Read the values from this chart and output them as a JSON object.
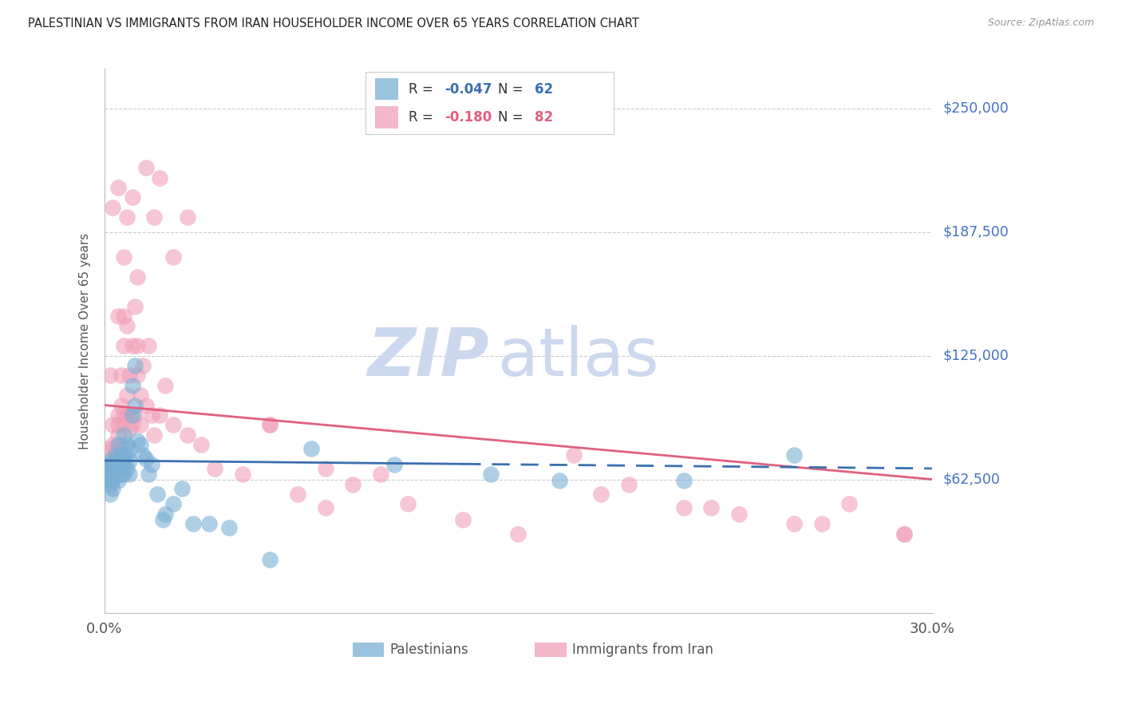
{
  "title": "PALESTINIAN VS IMMIGRANTS FROM IRAN HOUSEHOLDER INCOME OVER 65 YEARS CORRELATION CHART",
  "source": "Source: ZipAtlas.com",
  "ylabel": "Householder Income Over 65 years",
  "ytick_labels": [
    "$62,500",
    "$125,000",
    "$187,500",
    "$250,000"
  ],
  "ytick_values": [
    62500,
    125000,
    187500,
    250000
  ],
  "ylim": [
    -5000,
    270000
  ],
  "xlim": [
    0.0,
    0.3
  ],
  "blue_R": "-0.047",
  "blue_N": "62",
  "pink_R": "-0.180",
  "pink_N": "82",
  "blue_color": "#7bafd4",
  "pink_color": "#f0a0b8",
  "blue_line_color": "#3a6faf",
  "pink_line_color": "#e06080",
  "watermark_color": "#ccd8ee",
  "background_color": "#ffffff",
  "grid_color": "#cccccc",
  "title_color": "#222222",
  "source_color": "#999999",
  "ytick_color": "#4472c4",
  "legend_label_blue": "Palestinians",
  "legend_label_pink": "Immigrants from Iran",
  "blue_scatter_x": [
    0.001,
    0.001,
    0.001,
    0.001,
    0.002,
    0.002,
    0.002,
    0.002,
    0.002,
    0.003,
    0.003,
    0.003,
    0.003,
    0.003,
    0.004,
    0.004,
    0.004,
    0.004,
    0.004,
    0.005,
    0.005,
    0.005,
    0.005,
    0.006,
    0.006,
    0.006,
    0.006,
    0.007,
    0.007,
    0.007,
    0.007,
    0.008,
    0.008,
    0.008,
    0.009,
    0.009,
    0.009,
    0.01,
    0.01,
    0.011,
    0.011,
    0.012,
    0.013,
    0.014,
    0.015,
    0.016,
    0.017,
    0.019,
    0.021,
    0.022,
    0.025,
    0.028,
    0.032,
    0.038,
    0.045,
    0.06,
    0.075,
    0.105,
    0.14,
    0.165,
    0.21,
    0.25
  ],
  "blue_scatter_y": [
    62000,
    65000,
    68000,
    70000,
    60000,
    65000,
    68000,
    72000,
    55000,
    65000,
    68000,
    70000,
    58000,
    62000,
    70000,
    75000,
    68000,
    65000,
    72000,
    80000,
    73000,
    68000,
    62000,
    65000,
    68000,
    72000,
    75000,
    70000,
    73000,
    85000,
    65000,
    75000,
    80000,
    68000,
    72000,
    78000,
    65000,
    95000,
    110000,
    120000,
    100000,
    82000,
    80000,
    75000,
    73000,
    65000,
    70000,
    55000,
    42000,
    45000,
    50000,
    58000,
    40000,
    40000,
    38000,
    22000,
    78000,
    70000,
    65000,
    62000,
    62000,
    75000
  ],
  "pink_scatter_x": [
    0.001,
    0.001,
    0.002,
    0.002,
    0.002,
    0.003,
    0.003,
    0.003,
    0.003,
    0.004,
    0.004,
    0.004,
    0.005,
    0.005,
    0.005,
    0.005,
    0.006,
    0.006,
    0.006,
    0.006,
    0.007,
    0.007,
    0.007,
    0.007,
    0.008,
    0.008,
    0.008,
    0.009,
    0.009,
    0.009,
    0.01,
    0.01,
    0.011,
    0.011,
    0.012,
    0.012,
    0.013,
    0.013,
    0.014,
    0.015,
    0.016,
    0.017,
    0.018,
    0.02,
    0.022,
    0.025,
    0.03,
    0.035,
    0.04,
    0.05,
    0.06,
    0.07,
    0.08,
    0.09,
    0.11,
    0.13,
    0.15,
    0.17,
    0.19,
    0.21,
    0.23,
    0.25,
    0.27,
    0.29,
    0.003,
    0.005,
    0.007,
    0.008,
    0.01,
    0.012,
    0.015,
    0.018,
    0.02,
    0.025,
    0.03,
    0.06,
    0.08,
    0.1,
    0.18,
    0.22,
    0.26,
    0.29
  ],
  "pink_scatter_y": [
    65000,
    68000,
    72000,
    115000,
    78000,
    70000,
    80000,
    90000,
    78000,
    72000,
    76000,
    68000,
    85000,
    90000,
    95000,
    145000,
    75000,
    80000,
    100000,
    115000,
    90000,
    130000,
    95000,
    145000,
    105000,
    140000,
    95000,
    88000,
    115000,
    95000,
    90000,
    130000,
    95000,
    150000,
    115000,
    130000,
    105000,
    90000,
    120000,
    100000,
    130000,
    95000,
    85000,
    95000,
    110000,
    90000,
    85000,
    80000,
    68000,
    65000,
    90000,
    55000,
    48000,
    60000,
    50000,
    42000,
    35000,
    75000,
    60000,
    48000,
    45000,
    40000,
    50000,
    35000,
    200000,
    210000,
    175000,
    195000,
    205000,
    165000,
    220000,
    195000,
    215000,
    175000,
    195000,
    90000,
    68000,
    65000,
    55000,
    48000,
    40000,
    35000
  ]
}
